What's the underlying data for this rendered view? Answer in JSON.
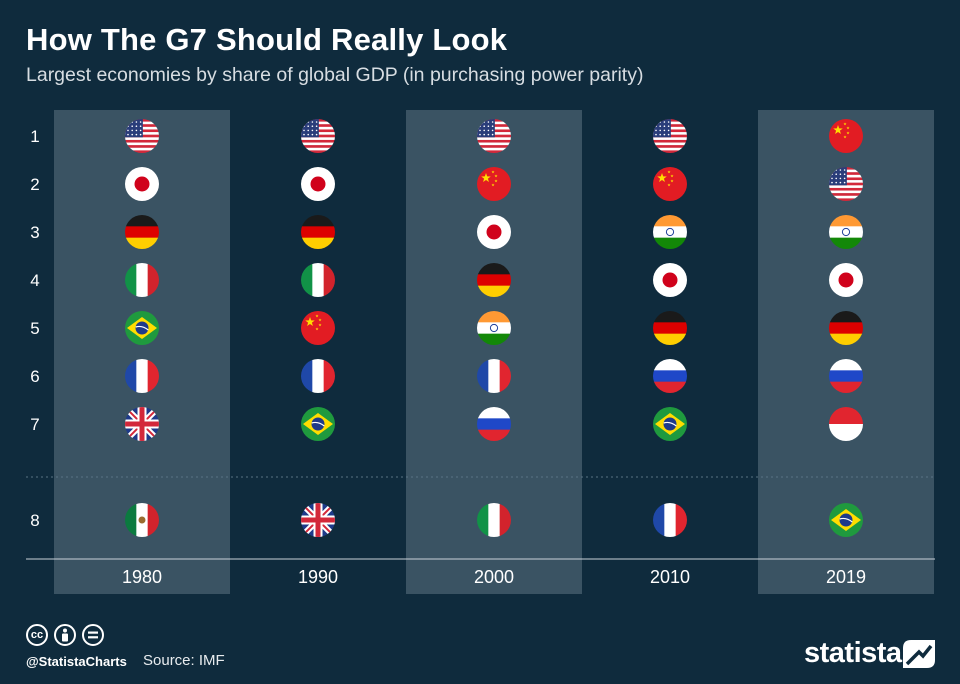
{
  "title": "How The G7 Should Really Look",
  "subtitle": "Largest economies by share of global GDP (in purchasing power parity)",
  "chart_data": {
    "type": "table",
    "columns": [
      "1980",
      "1990",
      "2000",
      "2010",
      "2019"
    ],
    "ranks": [
      "1",
      "2",
      "3",
      "4",
      "5",
      "6",
      "7",
      "8"
    ],
    "rankings": {
      "1980": [
        "us-flag-icon",
        "japan-flag-icon",
        "germany-flag-icon",
        "italy-flag-icon",
        "brazil-flag-icon",
        "france-flag-icon",
        "uk-flag-icon",
        "mexico-flag-icon"
      ],
      "1990": [
        "us-flag-icon",
        "japan-flag-icon",
        "germany-flag-icon",
        "italy-flag-icon",
        "china-flag-icon",
        "france-flag-icon",
        "brazil-flag-icon",
        "uk-flag-icon"
      ],
      "2000": [
        "us-flag-icon",
        "china-flag-icon",
        "japan-flag-icon",
        "germany-flag-icon",
        "india-flag-icon",
        "france-flag-icon",
        "russia-flag-icon",
        "italy-flag-icon"
      ],
      "2010": [
        "us-flag-icon",
        "china-flag-icon",
        "india-flag-icon",
        "japan-flag-icon",
        "germany-flag-icon",
        "russia-flag-icon",
        "brazil-flag-icon",
        "france-flag-icon"
      ],
      "2019": [
        "china-flag-icon",
        "us-flag-icon",
        "india-flag-icon",
        "japan-flag-icon",
        "germany-flag-icon",
        "russia-flag-icon",
        "indonesia-flag-icon",
        "brazil-flag-icon"
      ]
    },
    "shaded_columns": [
      "1980",
      "2000",
      "2019"
    ]
  },
  "colors": {
    "background": "#0f2b3d",
    "column_shade": "#3a5363",
    "divider": "#c9d2d8"
  },
  "footer": {
    "handle": "@StatistaCharts",
    "source": "Source: IMF",
    "brand": "statista",
    "license_icons": [
      "cc-icon",
      "attribution-icon",
      "no-derivatives-icon"
    ]
  }
}
